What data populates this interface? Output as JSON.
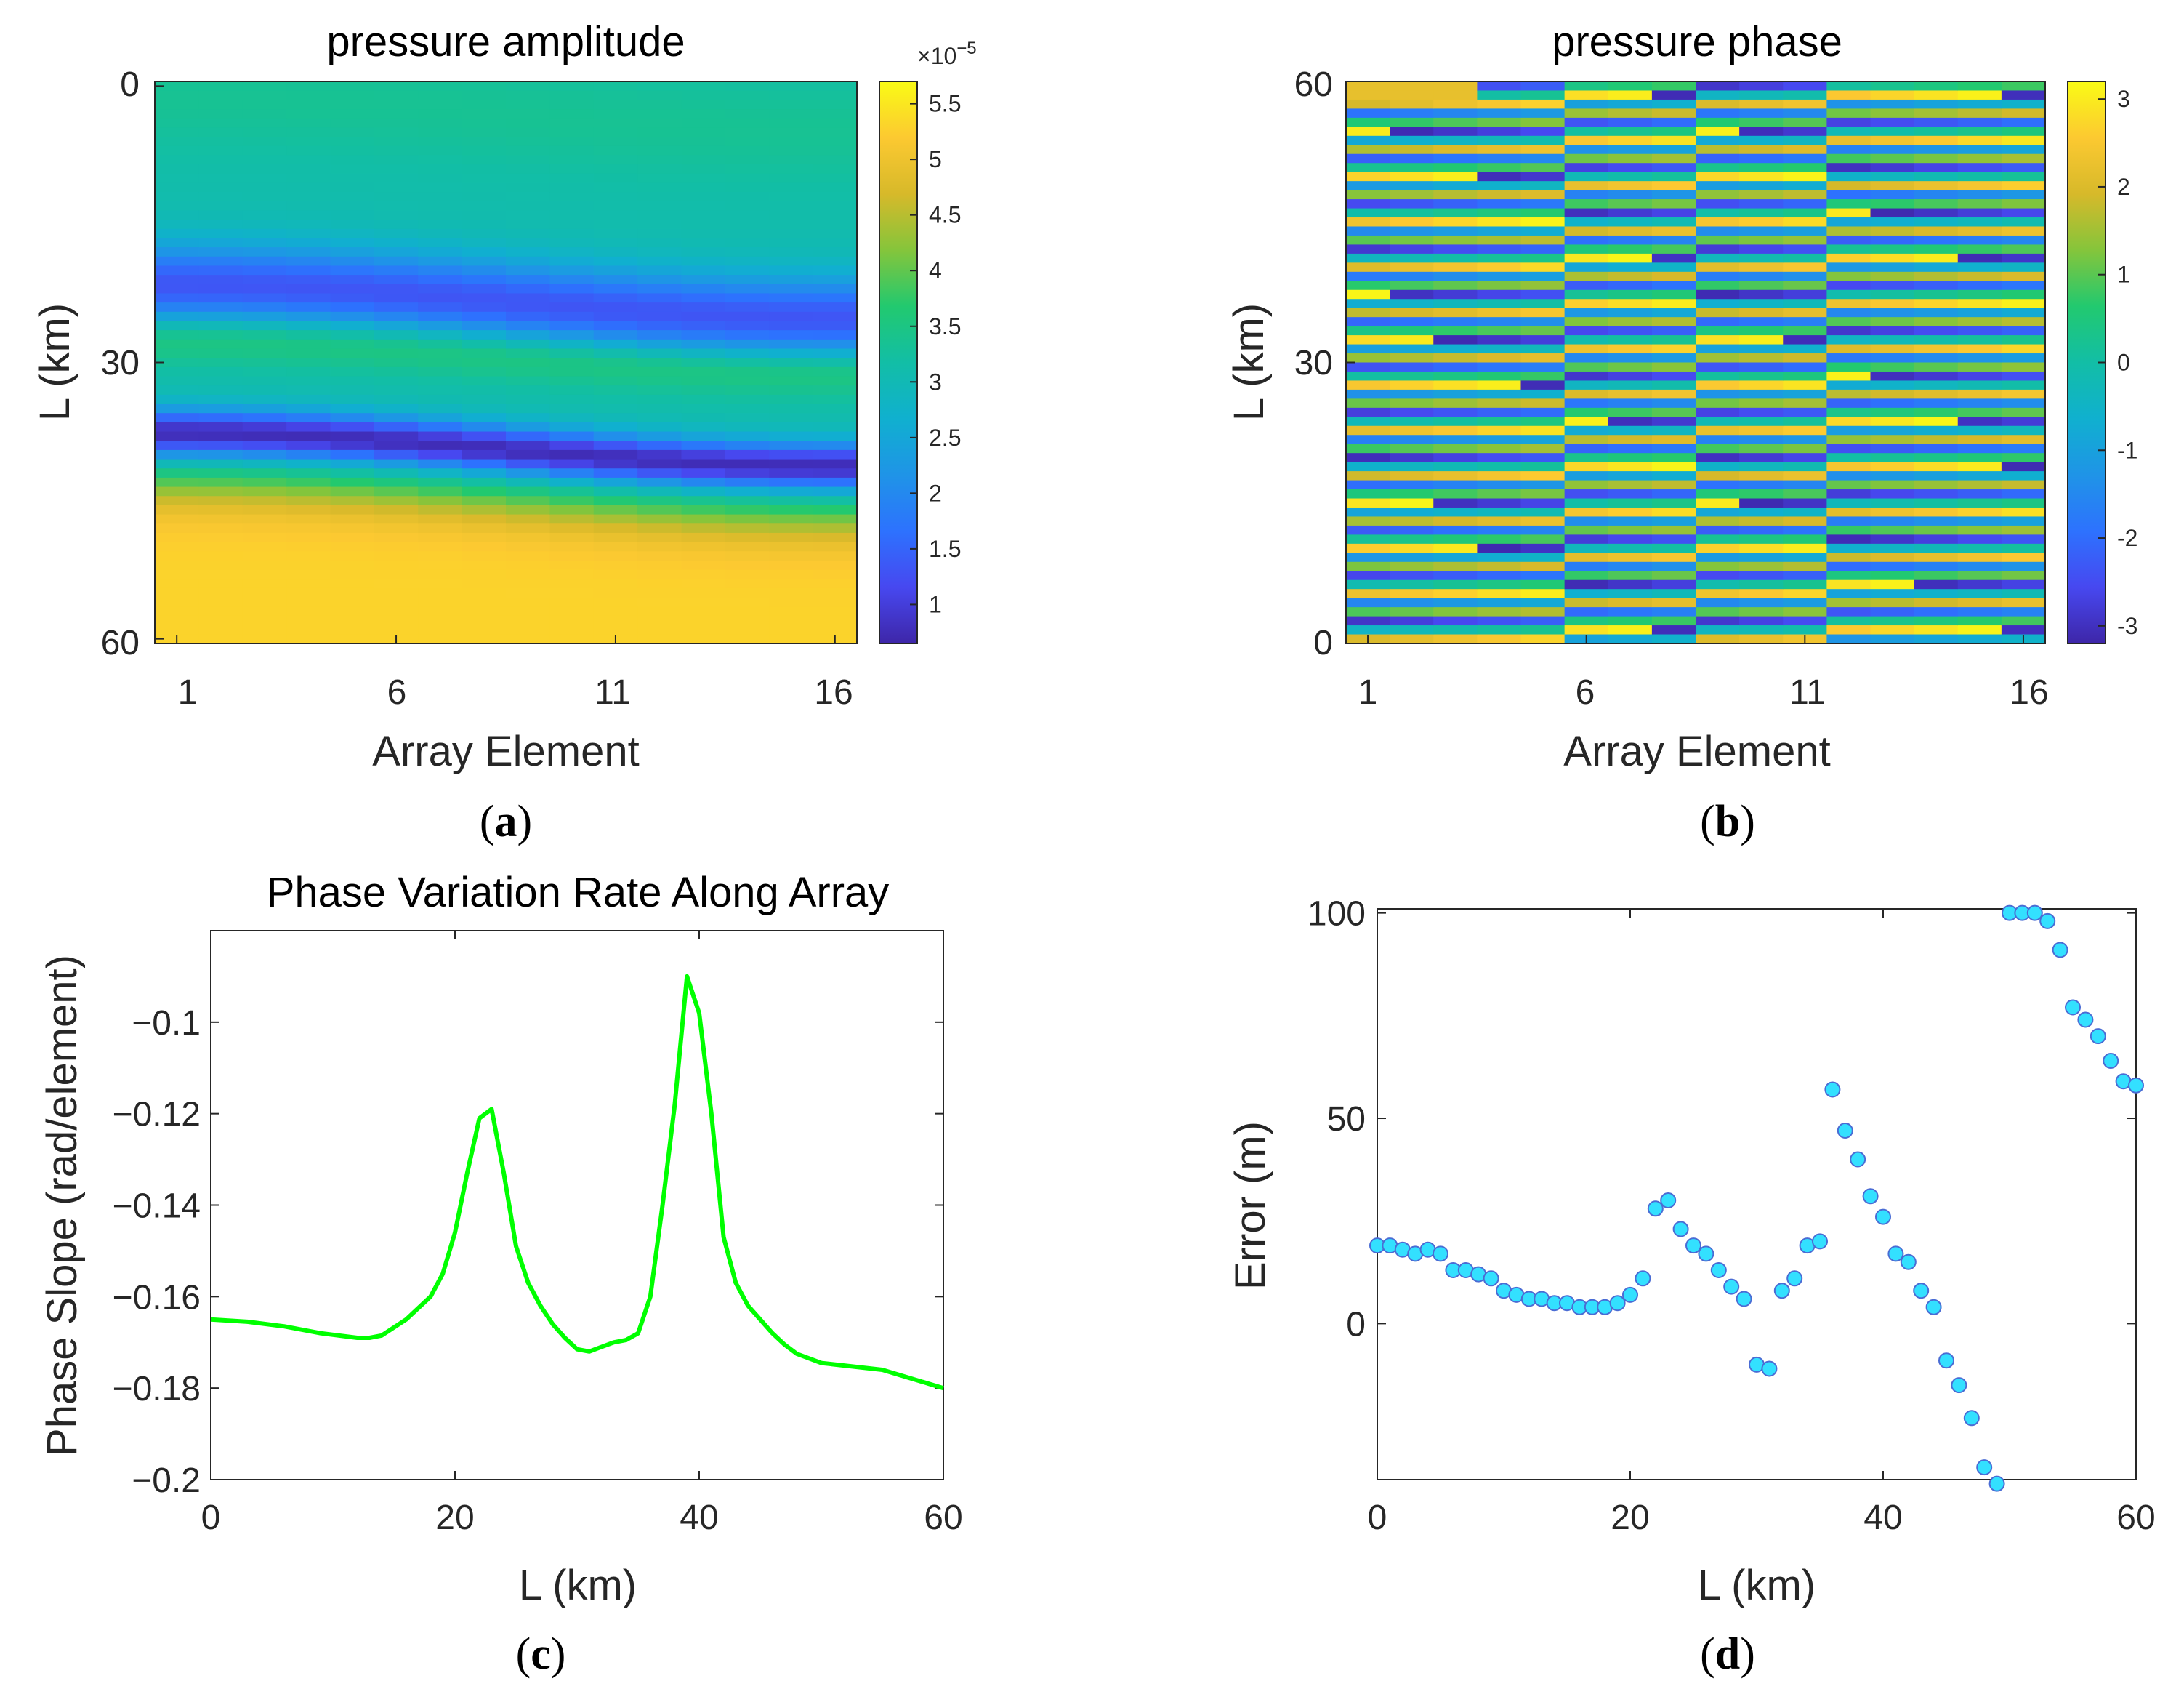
{
  "chart_data": [
    {
      "panel": "(a)",
      "panel_letter": "a",
      "type": "heatmap",
      "title": "pressure amplitude",
      "xlabel": "Array Element",
      "ylabel": "L (km)",
      "x_range": [
        1,
        16
      ],
      "y_range": [
        0,
        60
      ],
      "y_direction": "reversed",
      "xticks": [
        "1",
        "6",
        "11",
        "16"
      ],
      "yticks": [
        "0",
        "30",
        "60"
      ],
      "colorbar": {
        "multiplier": "×10",
        "exponent": "−5",
        "min": 0.65,
        "max": 5.7,
        "ticks": [
          "1",
          "1.5",
          "2",
          "2.5",
          "3",
          "3.5",
          "4",
          "4.5",
          "5",
          "5.5"
        ],
        "tick_values": [
          1,
          1.5,
          2,
          2.5,
          3,
          3.5,
          4,
          4.5,
          5,
          5.5
        ]
      }
    },
    {
      "panel": "(b)",
      "panel_letter": "b",
      "type": "heatmap",
      "title": "pressure phase",
      "xlabel": "Array Element",
      "ylabel": "L (km)",
      "x_range": [
        1,
        16
      ],
      "y_range": [
        0,
        60
      ],
      "y_direction": "normal",
      "xticks": [
        "1",
        "6",
        "11",
        "16"
      ],
      "yticks": [
        "60",
        "30",
        "0"
      ],
      "colorbar": {
        "min": -3.2,
        "max": 3.2,
        "ticks": [
          "-3",
          "-2",
          "-1",
          "0",
          "1",
          "2",
          "3"
        ],
        "tick_values": [
          -3,
          -2,
          -1,
          0,
          1,
          2,
          3
        ]
      }
    },
    {
      "panel": "(c)",
      "panel_letter": "c",
      "type": "line",
      "title": "Phase Variation Rate Along Array",
      "xlabel": "L (km)",
      "ylabel": "Phase Slope (rad/element)",
      "xlim": [
        0,
        60
      ],
      "ylim": [
        -0.2,
        -0.08
      ],
      "xticks": [
        "0",
        "20",
        "40",
        "60"
      ],
      "xtick_values": [
        0,
        20,
        40,
        60
      ],
      "yticks": [
        "−0.1",
        "−0.12",
        "−0.14",
        "−0.16",
        "−0.18",
        "−0.2"
      ],
      "ytick_values": [
        -0.1,
        -0.12,
        -0.14,
        -0.16,
        -0.18,
        -0.2
      ],
      "line_color": "#00ff00",
      "series": [
        {
          "name": "phase slope",
          "x": [
            0,
            3,
            6,
            9,
            12,
            13,
            14,
            16,
            18,
            19,
            20,
            21,
            22,
            23,
            24,
            25,
            26,
            27,
            28,
            29,
            30,
            31,
            32,
            33,
            34,
            35,
            36,
            37,
            38,
            39,
            40,
            41,
            42,
            43,
            44,
            45,
            46,
            47,
            48,
            50,
            55,
            60
          ],
          "y": [
            -0.165,
            -0.1655,
            -0.1665,
            -0.168,
            -0.169,
            -0.169,
            -0.1685,
            -0.165,
            -0.16,
            -0.155,
            -0.146,
            -0.133,
            -0.121,
            -0.119,
            -0.133,
            -0.149,
            -0.157,
            -0.162,
            -0.166,
            -0.169,
            -0.1715,
            -0.172,
            -0.171,
            -0.17,
            -0.1695,
            -0.168,
            -0.16,
            -0.14,
            -0.118,
            -0.09,
            -0.098,
            -0.12,
            -0.147,
            -0.157,
            -0.162,
            -0.165,
            -0.168,
            -0.1705,
            -0.1725,
            -0.1745,
            -0.176,
            -0.18
          ]
        }
      ]
    },
    {
      "panel": "(d)",
      "panel_letter": "d",
      "type": "scatter",
      "title": "",
      "xlabel": "L (km)",
      "ylabel": "Error (m)",
      "xlim": [
        0,
        60
      ],
      "ylim": [
        -38,
        101
      ],
      "xticks": [
        "0",
        "20",
        "40",
        "60"
      ],
      "xtick_values": [
        0,
        20,
        40,
        60
      ],
      "yticks": [
        "100",
        "50",
        "0"
      ],
      "ytick_values": [
        100,
        50,
        0
      ],
      "marker_color": "#33e0ff",
      "series": [
        {
          "name": "error",
          "x": [
            0,
            1,
            2,
            3,
            4,
            5,
            6,
            7,
            8,
            9,
            10,
            11,
            12,
            13,
            14,
            15,
            16,
            17,
            18,
            19,
            20,
            21,
            22,
            23,
            24,
            25,
            26,
            27,
            28,
            29,
            30,
            31,
            32,
            33,
            34,
            35,
            36,
            37,
            38,
            39,
            40,
            41,
            42,
            43,
            44,
            45,
            46,
            47,
            48,
            49,
            50,
            51,
            52,
            53,
            54,
            55,
            56,
            57,
            58,
            59,
            60
          ],
          "y": [
            19,
            19,
            18,
            17,
            18,
            17,
            13,
            13,
            12,
            11,
            8,
            7,
            6,
            6,
            5,
            5,
            4,
            4,
            4,
            5,
            7,
            11,
            28,
            30,
            23,
            19,
            17,
            13,
            9,
            6,
            -10,
            -11,
            8,
            11,
            19,
            20,
            57,
            47,
            40,
            31,
            26,
            17,
            15,
            8,
            4,
            -9,
            -15,
            -23,
            -35,
            -39,
            100,
            100,
            100,
            98,
            91,
            77,
            74,
            70,
            64,
            59,
            58
          ]
        }
      ]
    }
  ]
}
